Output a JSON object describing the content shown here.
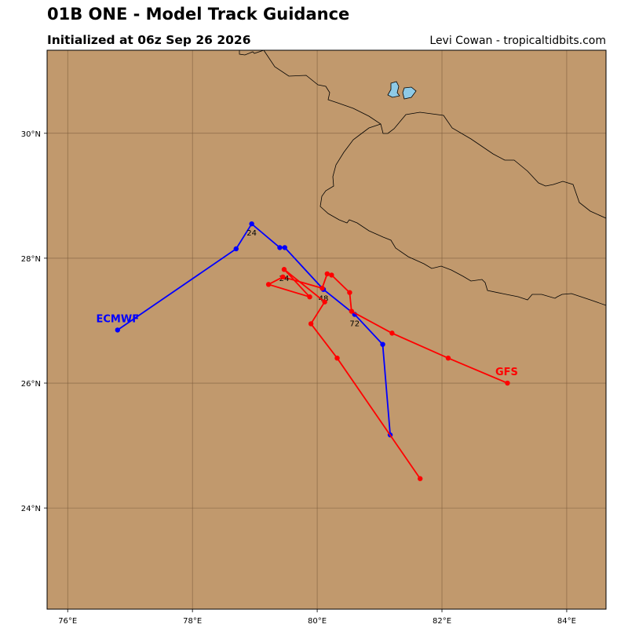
{
  "title": "01B ONE - Model Track Guidance",
  "subtitle": "Initialized at 06z Sep 26 2026",
  "credit": "Levi Cowan - tropicaltidbits.com",
  "colors": {
    "land": "#c1996d",
    "grid": "#7a5a3a",
    "lake": "#8ecae6",
    "coast": "#000000"
  },
  "map": {
    "lon_ticks": [
      {
        "value": 76,
        "label": "76°E"
      },
      {
        "value": 78,
        "label": "78°E"
      },
      {
        "value": 80,
        "label": "80°E"
      },
      {
        "value": 82,
        "label": "82°E"
      },
      {
        "value": 84,
        "label": "84°E"
      }
    ],
    "lat_ticks": [
      {
        "value": 24,
        "label": "24°N"
      },
      {
        "value": 26,
        "label": "26°N"
      },
      {
        "value": 28,
        "label": "28°N"
      },
      {
        "value": 30,
        "label": "30°N"
      }
    ]
  },
  "chart_data": {
    "type": "line",
    "xlabel": "",
    "ylabel": "",
    "xlim": [
      75.67,
      84.63
    ],
    "ylim": [
      22.38,
      31.33
    ],
    "grid": true,
    "series": [
      {
        "name": "ECMWF",
        "color": "#0000ff",
        "points": [
          {
            "lon": 76.8,
            "lat": 26.85
          },
          {
            "lon": 78.7,
            "lat": 28.15
          },
          {
            "lon": 78.95,
            "lat": 28.55,
            "hour": "24"
          },
          {
            "lon": 79.4,
            "lat": 28.17
          },
          {
            "lon": 79.48,
            "lat": 28.17
          },
          {
            "lon": 80.1,
            "lat": 27.5,
            "hour": "48"
          },
          {
            "lon": 80.6,
            "lat": 27.1,
            "hour": "72"
          },
          {
            "lon": 81.05,
            "lat": 26.62
          },
          {
            "lon": 81.17,
            "lat": 25.17
          }
        ]
      },
      {
        "name": "GFS",
        "color": "#ff0000",
        "points": [
          {
            "lon": 81.65,
            "lat": 24.47
          },
          {
            "lon": 80.32,
            "lat": 26.4
          },
          {
            "lon": 79.9,
            "lat": 26.95
          },
          {
            "lon": 80.12,
            "lat": 27.3
          },
          {
            "lon": 79.47,
            "lat": 27.82,
            "hour": "24"
          },
          {
            "lon": 79.88,
            "lat": 27.38
          },
          {
            "lon": 79.22,
            "lat": 27.58
          },
          {
            "lon": 79.45,
            "lat": 27.7
          },
          {
            "lon": 80.08,
            "lat": 27.52
          },
          {
            "lon": 80.16,
            "lat": 27.75
          },
          {
            "lon": 80.23,
            "lat": 27.73
          },
          {
            "lon": 80.52,
            "lat": 27.45
          },
          {
            "lon": 80.55,
            "lat": 27.15
          },
          {
            "lon": 81.2,
            "lat": 26.8
          },
          {
            "lon": 82.1,
            "lat": 26.4
          },
          {
            "lon": 83.05,
            "lat": 26.0
          }
        ]
      }
    ]
  }
}
